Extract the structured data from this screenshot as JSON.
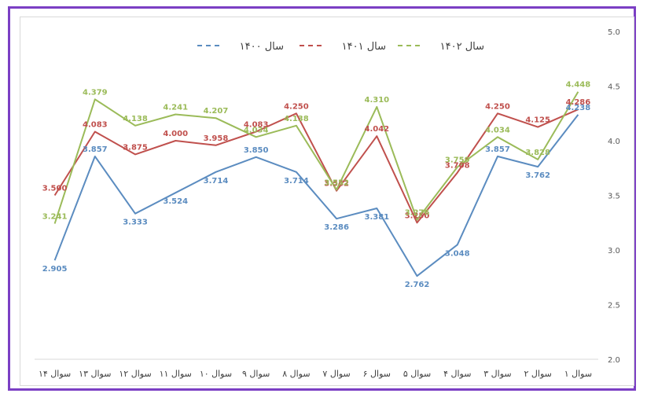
{
  "chart_data": {
    "type": "line",
    "categories": [
      "سوال ۱",
      "سوال ۲",
      "سوال ۳",
      "سوال ۴",
      "سوال ۵",
      "سوال ۶",
      "سوال ۷",
      "سوال ۸",
      "سوال ۹",
      "سوال ۱۰",
      "سوال ۱۱",
      "سوال ۱۲",
      "سوال ۱۳",
      "سوال ۱۴"
    ],
    "category_order": "right-to-left",
    "ylim": [
      2.0,
      5.0
    ],
    "yticks": [
      "2.0",
      "2.5",
      "3.0",
      "3.5",
      "4.0",
      "4.5",
      "5.0"
    ],
    "y_axis_position": "right",
    "grid": false,
    "legend_position": "top",
    "title": "",
    "xlabel": "",
    "ylabel": "",
    "series": [
      {
        "name": "سال ۱۴۰۰",
        "color": "#5b8cc0",
        "values": [
          4.238,
          3.762,
          3.857,
          3.048,
          2.762,
          3.381,
          3.286,
          3.714,
          3.85,
          3.714,
          3.524,
          3.333,
          3.857,
          2.905
        ],
        "labels": [
          "4.238",
          "3.762",
          "3.857",
          "3.048",
          "2.762",
          "3.381",
          "3.286",
          "3.714",
          "3.850",
          "3.714",
          "3.524",
          "3.333",
          "3.857",
          "2.905"
        ]
      },
      {
        "name": "سال ۱۴۰۱",
        "color": "#c0504d",
        "values": [
          4.286,
          4.125,
          4.25,
          3.708,
          3.25,
          4.042,
          3.542,
          4.25,
          4.083,
          3.958,
          4.0,
          3.875,
          4.083,
          3.5
        ],
        "labels": [
          "4.286",
          "4.125",
          "4.250",
          "3.708",
          "3.250",
          "4.042",
          "3.542",
          "4.250",
          "4.083",
          "3.958",
          "4.000",
          "3.875",
          "4.083",
          "3.500"
        ]
      },
      {
        "name": "سال ۱۴۰۲",
        "color": "#9bbb59",
        "values": [
          4.448,
          3.828,
          4.034,
          3.759,
          3.276,
          4.31,
          3.552,
          4.138,
          4.034,
          4.207,
          4.241,
          4.138,
          4.379,
          3.241
        ],
        "labels": [
          "4.448",
          "3.828",
          "4.034",
          "3.759",
          "3.276",
          "4.310",
          "3.552",
          "4.138",
          "4.034",
          "4.207",
          "4.241",
          "4.138",
          "4.379",
          "3.241"
        ]
      }
    ]
  }
}
